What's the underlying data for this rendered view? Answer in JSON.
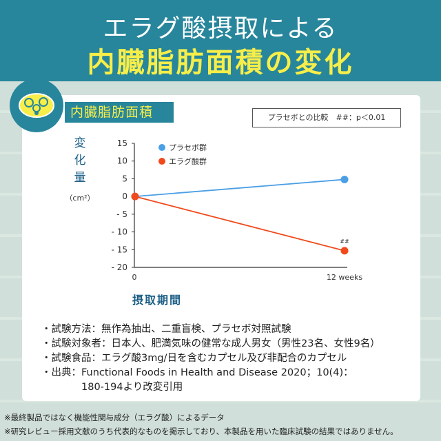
{
  "header": {
    "title_line1": "エラグ酸摂取による",
    "title_line2": "内臓脂肪面積の変化"
  },
  "panel": {
    "tag": "内臓脂肪面積",
    "compare_note": "プラセボとの比較　##：p＜0.01",
    "icon": "visceral-fat-icon"
  },
  "chart_data": {
    "type": "line",
    "ylabel": "変化量",
    "yunit": "（cm²）",
    "xlabel": "摂取期間",
    "x": [
      "0",
      "12 weeks"
    ],
    "ylim": [
      -20,
      15
    ],
    "yticks": [
      "15",
      "10",
      "5",
      "0",
      "- 5",
      "- 10",
      "- 15",
      "- 20"
    ],
    "series": [
      {
        "name": "プラセボ群",
        "values": [
          0,
          4.8
        ],
        "color": "#4a9fe6"
      },
      {
        "name": "エラグ酸群",
        "values": [
          0,
          -15.3
        ],
        "color": "#f04a1c",
        "annotation": "##"
      }
    ],
    "legend": "top-left",
    "grid": false
  },
  "notes": [
    "・試験方法：無作為抽出、二重盲検、プラセボ対照試験",
    "・試験対象者：日本人、肥満気味の健常な成人男女（男性23名、女性9名）",
    "・試験食品：エラグ酸3mg/日を含むカプセル及び非配合のカプセル",
    "・出典：Functional Foods in Health and Disease 2020；10(4)：",
    "180-194より改変引用"
  ],
  "footnotes": [
    "※最終製品ではなく機能性関与成分（エラグ酸）によるデータ",
    "※研究レビュー採用文献のうち代表的なものを掲示しており、本製品を用いた臨床試験の結果ではありません。"
  ]
}
